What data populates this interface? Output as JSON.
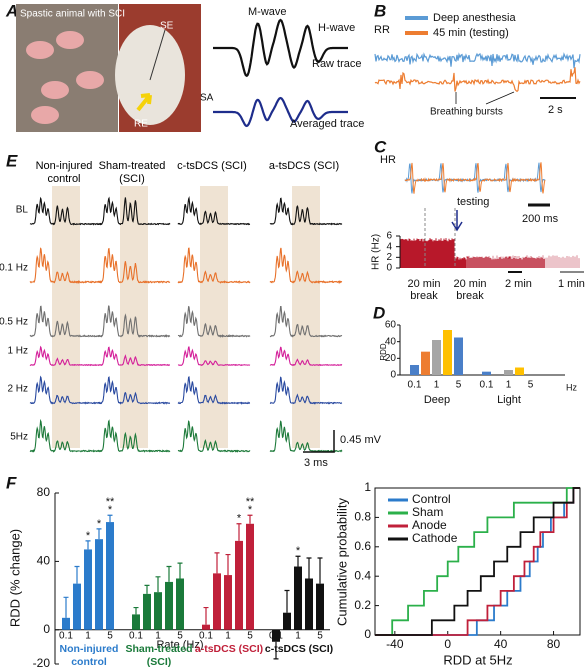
{
  "letters": [
    "A",
    "B",
    "C",
    "D",
    "E",
    "F"
  ],
  "panel_a": {
    "caption": "Spastic animal with SCI",
    "photo_labels": [
      "SE",
      "SA",
      "RE"
    ],
    "wave_labels": [
      "M-wave",
      "H-wave"
    ],
    "trace_labels": [
      "Raw trace",
      "Averaged trace"
    ]
  },
  "panel_b": {
    "trace_label": "RR",
    "series": [
      {
        "name": "Deep anesthesia",
        "color": "#5b9bd5"
      },
      {
        "name": "45 min (testing)",
        "color": "#ed7d31"
      }
    ],
    "annotation": "Breathing bursts",
    "scale_label": "2 s"
  },
  "panel_c": {
    "trace_label": "HR",
    "scale_label": "200 ms",
    "annotation": "testing",
    "ylabel": "HR (Hz)",
    "ylim": [
      0,
      6
    ],
    "yticks": [
      0,
      2,
      4,
      6
    ],
    "breaks": [
      [
        "20 min",
        "break"
      ],
      [
        "20 min",
        "break"
      ]
    ],
    "time_scales": [
      "2 min",
      "1 min"
    ]
  },
  "panel_e": {
    "columns": [
      "Non-injured control",
      "Sham-treated (SCI)",
      "c-tsDCS (SCI)",
      "a-tsDCS (SCI)"
    ],
    "rows": [
      "BL",
      "0.1 Hz",
      "0.5 Hz",
      "1 Hz",
      "2 Hz",
      "5Hz"
    ],
    "row_colors": [
      "#111111",
      "#e8712a",
      "#707070",
      "#d4209a",
      "#2a4aa0",
      "#1d7a3a"
    ],
    "scale_labels": [
      "0.45 mV",
      "3 ms"
    ]
  },
  "chart_data": [
    {
      "type": "bar",
      "ylabel": "RDD",
      "categories": [
        "0.1",
        null,
        "1",
        null,
        "5",
        "0.1",
        null,
        "1",
        null,
        "5"
      ],
      "groups": [
        "Deep",
        "Light"
      ],
      "unit": "Hz",
      "values": [
        12,
        28,
        42,
        54,
        45,
        4,
        0,
        6,
        9,
        0
      ],
      "colors": [
        "#4a7fc8",
        "#ed7d31",
        "#a5a5a5",
        "#ffc000",
        "#4a7fc8",
        "#4a7fc8",
        "#ed7d31",
        "#a5a5a5",
        "#ffc000",
        "#4a7fc8"
      ],
      "ylim": [
        0,
        60
      ],
      "yticks": [
        0,
        20,
        40,
        60
      ]
    },
    {
      "type": "grouped-bar",
      "ylabel": "RDD (% change)",
      "xlabel": "Rate (Hz)",
      "categories": [
        "0.1",
        null,
        "1",
        null,
        "5"
      ],
      "ylim": [
        -20,
        80
      ],
      "yticks": [
        -20,
        0,
        40,
        80
      ],
      "series": [
        {
          "name": "Non-injured control",
          "color": "#2b7bcb",
          "values": [
            7,
            27,
            47,
            53,
            63
          ],
          "errors": [
            12,
            10,
            5,
            6,
            4
          ],
          "significance": [
            null,
            null,
            "*",
            "*",
            [
              "*",
              "**"
            ]
          ]
        },
        {
          "name": "Sham-treated (SCI)",
          "color": "#1a7a3a",
          "values": [
            9,
            21,
            22,
            28,
            30
          ],
          "errors": [
            4,
            5,
            9,
            9,
            9
          ],
          "significance": [
            null,
            null,
            null,
            null,
            null
          ]
        },
        {
          "name": "a-tsDCS (SCI)",
          "color": "#c0203a",
          "values": [
            3,
            33,
            32,
            52,
            62
          ],
          "errors": [
            10,
            12,
            12,
            10,
            5
          ],
          "significance": [
            null,
            null,
            null,
            "*",
            [
              "*",
              "**"
            ]
          ]
        },
        {
          "name": "c-tsDCS (SCI)",
          "color": "#111111",
          "values": [
            -7,
            10,
            37,
            30,
            27
          ],
          "errors": [
            10,
            13,
            6,
            12,
            15
          ],
          "significance": [
            null,
            null,
            "*",
            null,
            null
          ]
        }
      ]
    },
    {
      "type": "step",
      "xlabel": "RDD at 5Hz",
      "ylabel": "Cumulative probability",
      "xlim": [
        -55,
        100
      ],
      "ylim": [
        0,
        1
      ],
      "xticks": [
        -40,
        0,
        40,
        80
      ],
      "yticks": [
        0,
        0.2,
        0.4,
        0.6,
        0.8,
        1
      ],
      "series": [
        {
          "name": "Control",
          "color": "#2b7bcb",
          "x": [
            22,
            35,
            45,
            55,
            62,
            68,
            72,
            78,
            88,
            95
          ],
          "y": [
            0.1,
            0.2,
            0.3,
            0.4,
            0.5,
            0.6,
            0.7,
            0.8,
            0.9,
            1
          ]
        },
        {
          "name": "Sham",
          "color": "#2bb04a",
          "x": [
            -42,
            -30,
            -18,
            -8,
            0,
            8,
            20,
            30,
            50,
            90
          ],
          "y": [
            0.1,
            0.2,
            0.3,
            0.4,
            0.5,
            0.6,
            0.7,
            0.8,
            0.9,
            1
          ]
        },
        {
          "name": "Anode",
          "color": "#c0203a",
          "x": [
            15,
            30,
            40,
            50,
            58,
            65,
            70,
            80,
            90,
            95
          ],
          "y": [
            0.1,
            0.2,
            0.3,
            0.4,
            0.5,
            0.6,
            0.7,
            0.8,
            0.9,
            1
          ]
        },
        {
          "name": "Cathode",
          "color": "#111111",
          "x": [
            -12,
            5,
            15,
            25,
            35,
            45,
            55,
            65,
            80,
            95
          ],
          "y": [
            0.1,
            0.2,
            0.3,
            0.4,
            0.5,
            0.6,
            0.7,
            0.8,
            0.9,
            1
          ]
        }
      ]
    }
  ]
}
